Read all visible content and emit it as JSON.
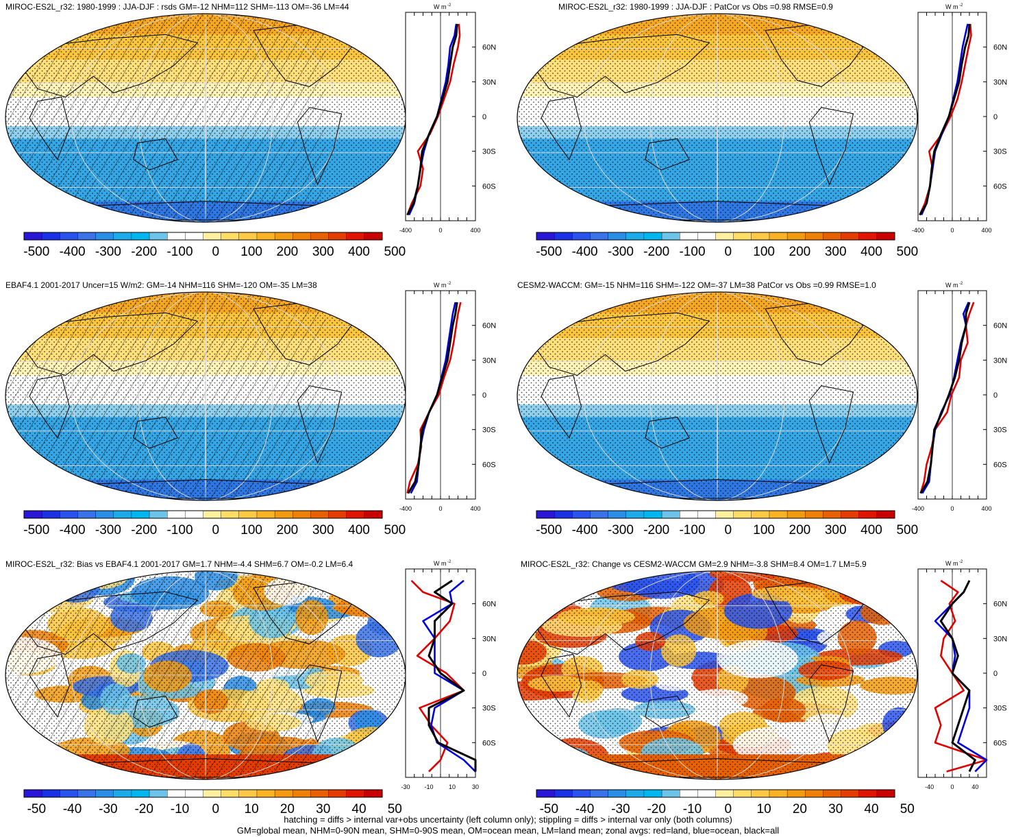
{
  "panels": [
    {
      "title": "MIROC-ES2L_r32: 1980-1999 : JJA-DJF : rsds GM=-12 NHM=112 SHM=-113 OM=-36 LM=44"
    },
    {
      "title": "MIROC-ES2L_r32: 1980-1999 : JJA-DJF : PatCor vs Obs =0.98 RMSE=0.9"
    },
    {
      "title": "EBAF4.1 2001-2017 Uncer=15 W/m2: GM=-14 NHM=116 SHM=-120 OM=-35 LM=38"
    },
    {
      "title": "CESM2-WACCM: GM=-15 NHM=116 SHM=-122 OM=-37 LM=38 PatCor vs Obs =0.99 RMSE=1.0"
    },
    {
      "title": "MIROC-ES2L_r32: Bias vs EBAF4.1 2001-2017 GM=1.7 NHM=-4.4 SHM=6.7 OM=-0.2 LM=6.4"
    },
    {
      "title": "MIROC-ES2L_r32: Change vs CESM2-WACCM GM=2.9 NHM=-3.8 SHM=8.4 OM=1.7 LM=5.9"
    }
  ],
  "footnote": {
    "line1": "hatching = diffs > internal var+obs uncertainty (left column only); stippling = diffs > internal var only (both columns)",
    "line2": "GM=global mean, NHM=0-90N mean, SHM=0-90S mean, OM=ocean mean, LM=land mean; zonal avgs: red=land, blue=ocean, black=all"
  },
  "chart_data": {
    "type": "heatmap",
    "units_label": "W m",
    "units_exp": "-2",
    "lat_ticks": [
      "60N",
      "30N",
      "0",
      "30S",
      "60S"
    ],
    "colorbar_abs": {
      "labels": [
        "-500",
        "-400",
        "-300",
        "-200",
        "-100",
        "0",
        "100",
        "200",
        "300",
        "400",
        "500"
      ],
      "colors": [
        "#2a16d6",
        "#1a31e4",
        "#2a53ee",
        "#3a72e8",
        "#2b8ee6",
        "#1caae8",
        "#00b6ee",
        "#6cc4ea",
        "#ffffff",
        "#ffffff",
        "#fff0a0",
        "#ffdd66",
        "#ffc946",
        "#f9b224",
        "#f39b10",
        "#ee8008",
        "#e86100",
        "#e53c00",
        "#e01500",
        "#c80000"
      ]
    },
    "colorbar_diff": {
      "labels": [
        "-50",
        "-40",
        "-30",
        "-20",
        "-10",
        "0",
        "10",
        "20",
        "30",
        "40",
        "50"
      ],
      "colors": [
        "#2a16d6",
        "#1a31e4",
        "#2a53ee",
        "#3a72e8",
        "#2b8ee6",
        "#1caae8",
        "#00b6ee",
        "#6cc4ea",
        "#ffffff",
        "#ffffff",
        "#fff0a0",
        "#ffdd66",
        "#ffc946",
        "#f9b224",
        "#f39b10",
        "#ee8008",
        "#e86100",
        "#e53c00",
        "#e01500",
        "#c80000"
      ]
    },
    "zonal_xticks_abs": [
      "-400",
      "0",
      "400"
    ],
    "zonal_xlim_abs": [
      -400,
      400
    ],
    "zonal_xticks_bias": [
      "-30",
      "-10",
      "10",
      "30"
    ],
    "zonal_xlim_bias": [
      -30,
      30
    ],
    "zonal_xticks_change": [
      "-40",
      "0",
      "40"
    ],
    "zonal_xlim_change": [
      -60,
      60
    ],
    "lat_values": [
      80,
      70,
      60,
      45,
      30,
      15,
      0,
      -15,
      -30,
      -45,
      -60,
      -75,
      -85
    ],
    "zonal_profiles": [
      {
        "panel": 0,
        "series": [
          {
            "name": "land",
            "color": "#e00000",
            "values": [
              210,
              220,
              200,
              150,
              110,
              40,
              -30,
              -120,
              -260,
              -200,
              -230,
              -330,
              -380
            ]
          },
          {
            "name": "ocean",
            "color": "#0000e0",
            "values": [
              180,
              160,
              110,
              90,
              60,
              10,
              -40,
              -130,
              -190,
              -230,
              -260,
              -300,
              -360
            ]
          },
          {
            "name": "all",
            "color": "#000000",
            "values": [
              190,
              180,
              140,
              110,
              80,
              20,
              -40,
              -130,
              -210,
              -230,
              -260,
              -310,
              -380
            ]
          }
        ]
      },
      {
        "panel": 1,
        "series": [
          {
            "name": "land",
            "color": "#e00000",
            "values": [
              210,
              220,
              190,
              150,
              110,
              60,
              -20,
              -120,
              -270,
              -230,
              -260,
              -320,
              -380
            ]
          },
          {
            "name": "ocean",
            "color": "#0000e0",
            "values": [
              180,
              150,
              120,
              90,
              60,
              10,
              -40,
              -120,
              -200,
              -230,
              -260,
              -300,
              -360
            ]
          },
          {
            "name": "all",
            "color": "#000000",
            "values": [
              200,
              190,
              150,
              110,
              80,
              20,
              -40,
              -130,
              -210,
              -240,
              -260,
              -300,
              -380
            ]
          }
        ]
      },
      {
        "panel": 2,
        "series": [
          {
            "name": "land",
            "color": "#e00000",
            "values": [
              230,
              200,
              180,
              150,
              110,
              40,
              -20,
              -130,
              -230,
              -220,
              -260,
              -350,
              -380
            ]
          },
          {
            "name": "ocean",
            "color": "#0000e0",
            "values": [
              170,
              140,
              120,
              90,
              60,
              10,
              -40,
              -130,
              -190,
              -230,
              -250,
              -270,
              -340
            ]
          },
          {
            "name": "all",
            "color": "#000000",
            "values": [
              190,
              170,
              140,
              110,
              80,
              20,
              -40,
              -130,
              -210,
              -230,
              -250,
              -290,
              -370
            ]
          }
        ]
      },
      {
        "panel": 3,
        "series": [
          {
            "name": "land",
            "color": "#e00000",
            "values": [
              250,
              200,
              160,
              180,
              100,
              80,
              -10,
              -60,
              -200,
              -240,
              -300,
              -330,
              -370
            ]
          },
          {
            "name": "ocean",
            "color": "#0000e0",
            "values": [
              190,
              130,
              160,
              100,
              60,
              20,
              -30,
              -130,
              -200,
              -230,
              -250,
              -270,
              -350
            ]
          },
          {
            "name": "all",
            "color": "#000000",
            "values": [
              200,
              160,
              160,
              110,
              80,
              30,
              -40,
              -120,
              -210,
              -230,
              -250,
              -290,
              -370
            ]
          }
        ]
      },
      {
        "panel": 4,
        "series": [
          {
            "name": "land",
            "color": "#e00000",
            "values": [
              -25,
              -15,
              12,
              8,
              -5,
              -20,
              5,
              20,
              -18,
              -8,
              6,
              0,
              -10
            ]
          },
          {
            "name": "ocean",
            "color": "#0000e0",
            "values": [
              20,
              8,
              10,
              -15,
              -5,
              -5,
              -5,
              20,
              -5,
              -8,
              -3,
              20,
              30
            ]
          },
          {
            "name": "all",
            "color": "#000000",
            "values": [
              10,
              -5,
              10,
              -5,
              -5,
              -10,
              0,
              20,
              -10,
              -10,
              -2,
              30,
              30
            ]
          }
        ]
      },
      {
        "panel": 5,
        "series": [
          {
            "name": "land",
            "color": "#e00000",
            "values": [
              -20,
              10,
              -5,
              5,
              -15,
              -20,
              0,
              20,
              -30,
              -20,
              -30,
              60,
              -10
            ]
          },
          {
            "name": "ocean",
            "color": "#0000e0",
            "values": [
              30,
              20,
              0,
              -30,
              0,
              5,
              0,
              30,
              30,
              20,
              10,
              60,
              40
            ]
          },
          {
            "name": "all",
            "color": "#000000",
            "values": [
              30,
              20,
              0,
              -20,
              0,
              10,
              0,
              30,
              20,
              10,
              0,
              40,
              30
            ]
          }
        ]
      }
    ]
  }
}
